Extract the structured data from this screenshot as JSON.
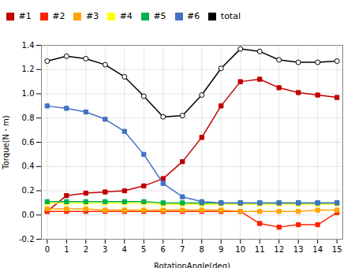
{
  "chart_data": {
    "type": "line",
    "x": [
      0,
      1,
      2,
      3,
      4,
      5,
      6,
      7,
      8,
      9,
      10,
      11,
      12,
      13,
      14,
      15
    ],
    "series": [
      {
        "name": "#1",
        "color": "#c00000",
        "marker": "square",
        "values": [
          0.03,
          0.16,
          0.18,
          0.19,
          0.2,
          0.24,
          0.3,
          0.44,
          0.64,
          0.9,
          1.1,
          1.12,
          1.05,
          1.01,
          0.99,
          0.97
        ]
      },
      {
        "name": "#2",
        "color": "#ff2200",
        "marker": "square",
        "values": [
          0.03,
          0.03,
          0.03,
          0.03,
          0.03,
          0.03,
          0.03,
          0.03,
          0.03,
          0.03,
          0.03,
          -0.07,
          -0.1,
          -0.08,
          -0.08,
          0.02
        ]
      },
      {
        "name": "#3",
        "color": "#ffa500",
        "marker": "square",
        "values": [
          0.05,
          0.05,
          0.05,
          0.04,
          0.04,
          0.04,
          0.04,
          0.04,
          0.04,
          0.04,
          0.03,
          0.03,
          0.03,
          0.03,
          0.04,
          0.04
        ]
      },
      {
        "name": "#4",
        "color": "#ffff00",
        "marker": "square",
        "values": [
          0.1,
          0.1,
          0.1,
          0.1,
          0.1,
          0.1,
          0.09,
          0.09,
          0.09,
          0.09,
          0.09,
          0.09,
          0.09,
          0.09,
          0.09,
          0.09
        ]
      },
      {
        "name": "#5",
        "color": "#00b050",
        "marker": "square",
        "values": [
          0.11,
          0.11,
          0.11,
          0.11,
          0.11,
          0.11,
          0.1,
          0.1,
          0.1,
          0.1,
          0.1,
          0.1,
          0.1,
          0.1,
          0.1,
          0.1
        ]
      },
      {
        "name": "#6",
        "color": "#4472c4",
        "marker": "square",
        "values": [
          0.9,
          0.88,
          0.85,
          0.79,
          0.69,
          0.5,
          0.26,
          0.15,
          0.11,
          0.1,
          0.1,
          0.1,
          0.1,
          0.1,
          0.1,
          0.1
        ]
      },
      {
        "name": "total",
        "color": "#000000",
        "marker": "circle",
        "values": [
          1.27,
          1.31,
          1.29,
          1.24,
          1.14,
          0.98,
          0.81,
          0.82,
          0.99,
          1.21,
          1.37,
          1.35,
          1.28,
          1.26,
          1.26,
          1.27
        ]
      }
    ],
    "xlabel": "RotationAngle(deg)",
    "ylabel": "Torque(N・m)",
    "xlim": [
      -0.3,
      15.3
    ],
    "ylim": [
      -0.2,
      1.4
    ],
    "xticks": [
      0,
      1,
      2,
      3,
      4,
      5,
      6,
      7,
      8,
      9,
      10,
      11,
      12,
      13,
      14,
      15
    ],
    "yticks": [
      -0.2,
      {
        "value": 0,
        "label": "0.0"
      },
      0.2,
      0.4,
      0.6,
      0.8,
      {
        "value": 1,
        "label": "1.0"
      },
      1.2,
      1.4
    ],
    "grid": true,
    "legend": "top"
  }
}
